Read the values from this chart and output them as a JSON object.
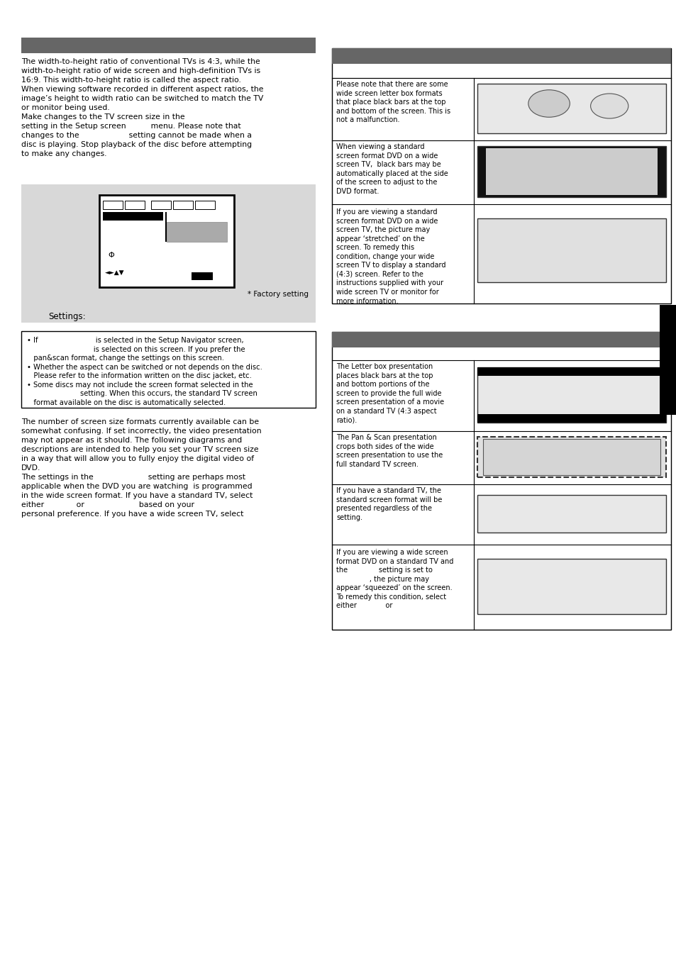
{
  "bg_color": "#ffffff",
  "gray_bar_color": "#666666",
  "gray_box_color": "#d5d5d5",
  "left_text": "The width-to-height ratio of conventional TVs is 4:3, while the\nwidth-to-height ratio of wide screen and high-definition TVs is\n16:9. This width-to-height ratio is called the aspect ratio.\nWhen viewing software recorded in different aspect ratios, the\nimage’s height to width ratio can be switched to match the TV\nor monitor being used.\nMake changes to the TV screen size in the\nsetting in the Setup screen          menu. Please note that\nchanges to the                    setting cannot be made when a\ndisc is playing. Stop playback of the disc before attempting\nto make any changes.",
  "settings_label": "Settings:",
  "factory_setting": "* Factory setting",
  "bullet_text": "• If                          is selected in the Setup Navigator screen,\n                              is selected on this screen. If you prefer the\n   pan&scan format, change the settings on this screen.\n• Whether the aspect can be switched or not depends on the disc.\n   Please refer to the information written on the disc jacket, etc.\n• Some discs may not include the screen format selected in the\n                        setting. When this occurs, the standard TV screen\n   format available on the disc is automatically selected.",
  "main_text": "The number of screen size formats currently available can be\nsomewhat confusing. If set incorrectly, the video presentation\nmay not appear as it should. The following diagrams and\ndescriptions are intended to help you set your TV screen size\nin a way that will allow you to fully enjoy the digital video of\nDVD.\nThe settings in the                      setting are perhaps most\napplicable when the DVD you are watching  is programmed\nin the wide screen format. If you have a standard TV, select\neither             or                      based on your\npersonal preference. If you have a wide screen TV, select",
  "rc1_text1": "Please note that there are some\nwide screen letter box formats\nthat place black bars at the top\nand bottom of the screen. This is\nnot a malfunction.",
  "rc1_text2": "When viewing a standard\nscreen format DVD on a wide\nscreen TV,  black bars may be\nautomatically placed at the side\nof the screen to adjust to the\nDVD format.",
  "rc1_text3": "If you are viewing a standard\nscreen format DVD on a wide\nscreen TV, the picture may\nappear ‘stretched’ on the\nscreen. To remedy this\ncondition, change your wide\nscreen TV to display a standard\n(4:3) screen. Refer to the\ninstructions supplied with your\nwide screen TV or monitor for\nmore information.",
  "rc2_text1": "The Letter box presentation\nplaces black bars at the top\nand bottom portions of the\nscreen to provide the full wide\nscreen presentation of a movie\non a standard TV (4:3 aspect\nratio).",
  "rc2_text2": "The Pan & Scan presentation\ncrops both sides of the wide\nscreen presentation to use the\nfull standard TV screen.",
  "rc2_text3": "If you have a standard TV, the\nstandard screen format will be\npresented regardless of the\nsetting.",
  "rc2_text4": "If you are viewing a wide screen\nformat DVD on a standard TV and\nthe              setting is set to\n               , the picture may\nappear ‘squeezed’ on the screen.\nTo remedy this condition, select\neither             or"
}
